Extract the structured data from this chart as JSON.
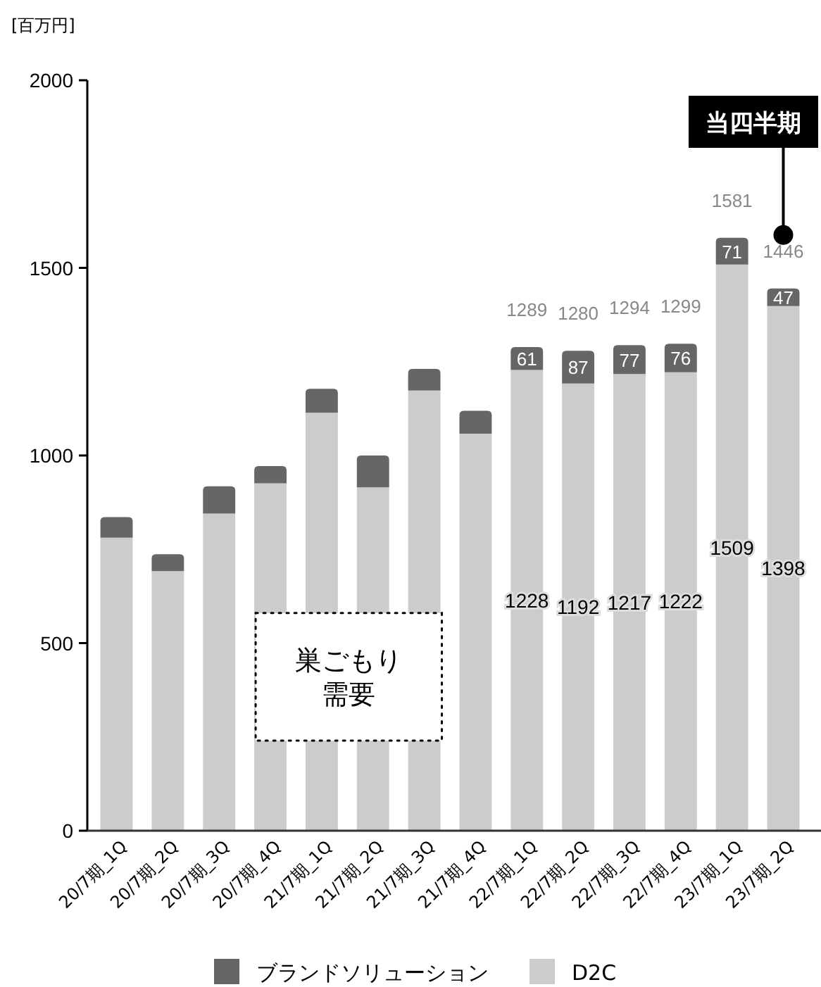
{
  "chart_data": {
    "type": "bar",
    "stacked": true,
    "ylabel": "[百万円]",
    "categories": [
      "20/7期_1Q",
      "20/7期_2Q",
      "20/7期_3Q",
      "20/7期_4Q",
      "21/7期_1Q",
      "21/7期_2Q",
      "21/7期_3Q",
      "21/7期_4Q",
      "22/7期_1Q",
      "22/7期_2Q",
      "22/7期_3Q",
      "22/7期_4Q",
      "23/7期_1Q",
      "23/7期_2Q"
    ],
    "series": [
      {
        "name": "D2C",
        "color": "#cccccc",
        "values": [
          781,
          692,
          845,
          926,
          1114,
          915,
          1173,
          1058,
          1228,
          1192,
          1217,
          1222,
          1509,
          1398
        ],
        "value_labels": [
          null,
          null,
          null,
          null,
          null,
          null,
          null,
          null,
          "1228",
          "1192",
          "1217",
          "1222",
          "1509",
          "1398"
        ]
      },
      {
        "name": "ブランドソリューション",
        "color": "#666666",
        "values": [
          55,
          45,
          73,
          46,
          64,
          85,
          58,
          61,
          61,
          87,
          77,
          76,
          71,
          47
        ],
        "value_labels": [
          null,
          null,
          null,
          null,
          null,
          null,
          null,
          null,
          "61",
          "87",
          "77",
          "76",
          "71",
          "47"
        ]
      }
    ],
    "totals": [
      null,
      null,
      null,
      null,
      null,
      null,
      null,
      null,
      "1289",
      "1280",
      "1294",
      "1299",
      "1581",
      "1446"
    ],
    "ylim": [
      0,
      2000
    ],
    "yticks": [
      0,
      500,
      1000,
      1500,
      2000
    ],
    "grid": false,
    "legend": "bottom",
    "annotations": [
      "巣ごもり需要",
      "当四半期"
    ]
  }
}
